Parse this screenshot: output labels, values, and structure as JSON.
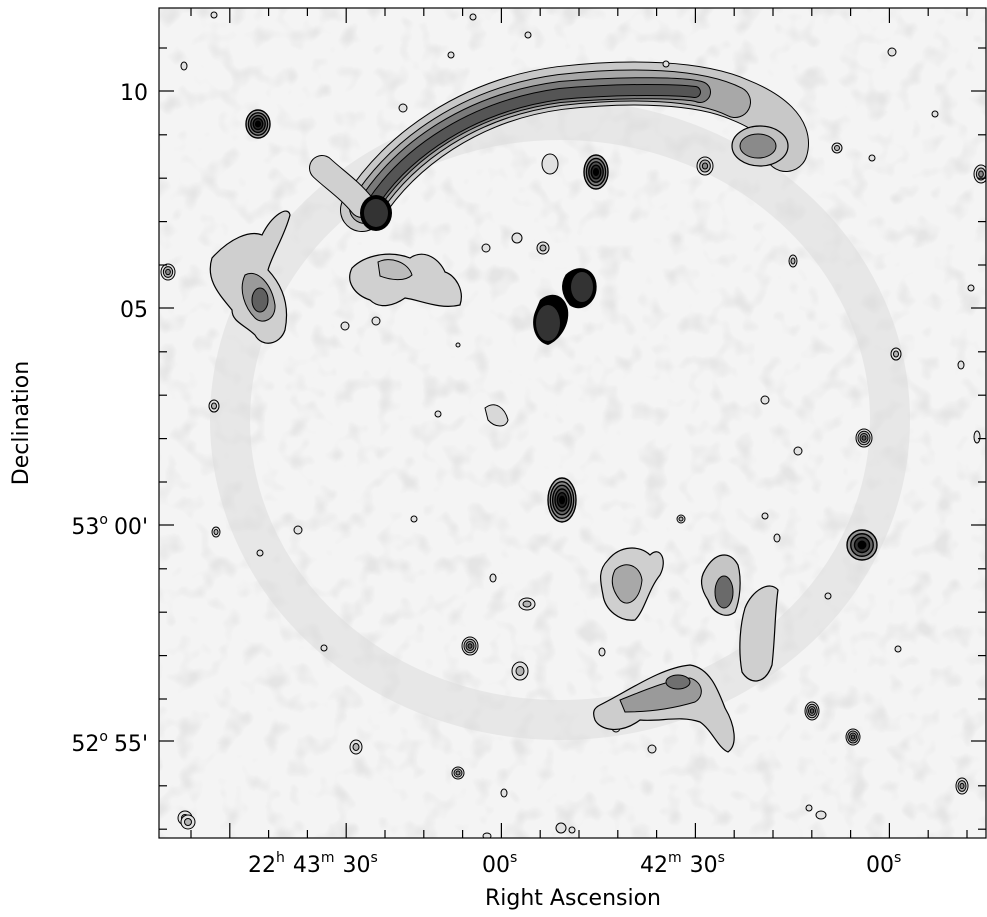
{
  "chart_data": {
    "type": "contour_map",
    "xlabel": "Right Ascension",
    "ylabel": "Declination",
    "x_ticks": [
      {
        "h": "22",
        "m": "43",
        "s": "30"
      },
      {
        "s": "00"
      },
      {
        "m": "42",
        "s": "30"
      },
      {
        "s": "00"
      }
    ],
    "y_ticks": [
      {
        "label": "10"
      },
      {
        "label": "05"
      },
      {
        "deg": "53",
        "min": "00"
      },
      {
        "deg": "52",
        "min": "55"
      }
    ],
    "colors": {
      "contour": "#000000",
      "background": "#f0f0f0",
      "emission": "#505050"
    }
  }
}
